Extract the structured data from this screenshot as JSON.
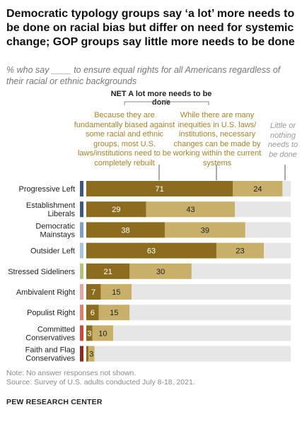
{
  "header": {
    "title": "Democratic typology groups say ‘a lot’ more needs to be done on racial bias but differ on need for systemic change; GOP groups say little more needs to be done",
    "subtitle": "% who say ____ to ensure equal rights for all Americans regardless of their racial or ethnic backgrounds"
  },
  "legend": {
    "net": "NET A lot more needs to be done",
    "col1": "Because they are fundamentally biased against some racial and ethnic groups, most U.S. laws/institutions need to be completely rebuilt",
    "col2": "While there are many inequities in U.S. laws/ institutions, necessary changes can be made by working within the current systems",
    "col3": "Little or nothing needs to be done"
  },
  "footer": {
    "note": "Note: No answer responses not shown.",
    "source": "Source: Survey of U.S. adults conducted July 8-18, 2021.",
    "org": "PEW RESEARCH CENTER"
  },
  "colors": {
    "rebuilt": "#8c6d1f",
    "within": "#c9b06a",
    "little": "#e6e6e6",
    "text_dark": "#ffffff",
    "text_light": "#222222"
  },
  "chart_data": {
    "type": "bar",
    "orientation": "horizontal",
    "stacked": true,
    "xlim": [
      0,
      100
    ],
    "categories": [
      [
        "Progressive Left"
      ],
      [
        "Establishment",
        "Liberals"
      ],
      [
        "Democratic",
        "Mainstays"
      ],
      [
        "Outsider Left"
      ],
      [
        "Stressed Sideliners"
      ],
      [
        "Ambivalent Right"
      ],
      [
        "Populist Right"
      ],
      [
        "Committed",
        "Conservatives"
      ],
      [
        "Faith and Flag",
        "Conservatives"
      ]
    ],
    "group_colors": [
      "#3b5a7a",
      "#3b5a7a",
      "#7fa1bf",
      "#a9c3da",
      "#b5c27a",
      "#e8a3a3",
      "#e07b6e",
      "#c94a3c",
      "#8b2b22"
    ],
    "series": [
      {
        "name": "Because they are fundamentally biased against some racial and ethnic groups, most U.S. laws/institutions need to be completely rebuilt",
        "values": [
          71,
          29,
          38,
          63,
          21,
          7,
          6,
          3,
          1
        ]
      },
      {
        "name": "While there are many inequities in U.S. laws/ institutions, necessary changes can be made by working within the current systems",
        "values": [
          24,
          43,
          39,
          23,
          30,
          15,
          15,
          10,
          3
        ]
      },
      {
        "name": "Little or nothing needs to be done",
        "values": [
          4,
          27,
          22,
          13,
          48,
          77,
          78,
          86,
          95
        ]
      }
    ],
    "shown_labels": [
      [
        "71",
        "29",
        "38",
        "63",
        "21",
        "7",
        "6",
        "3",
        ""
      ],
      [
        "24",
        "43",
        "39",
        "23",
        "30",
        "15",
        "15",
        "10",
        "3"
      ]
    ]
  }
}
